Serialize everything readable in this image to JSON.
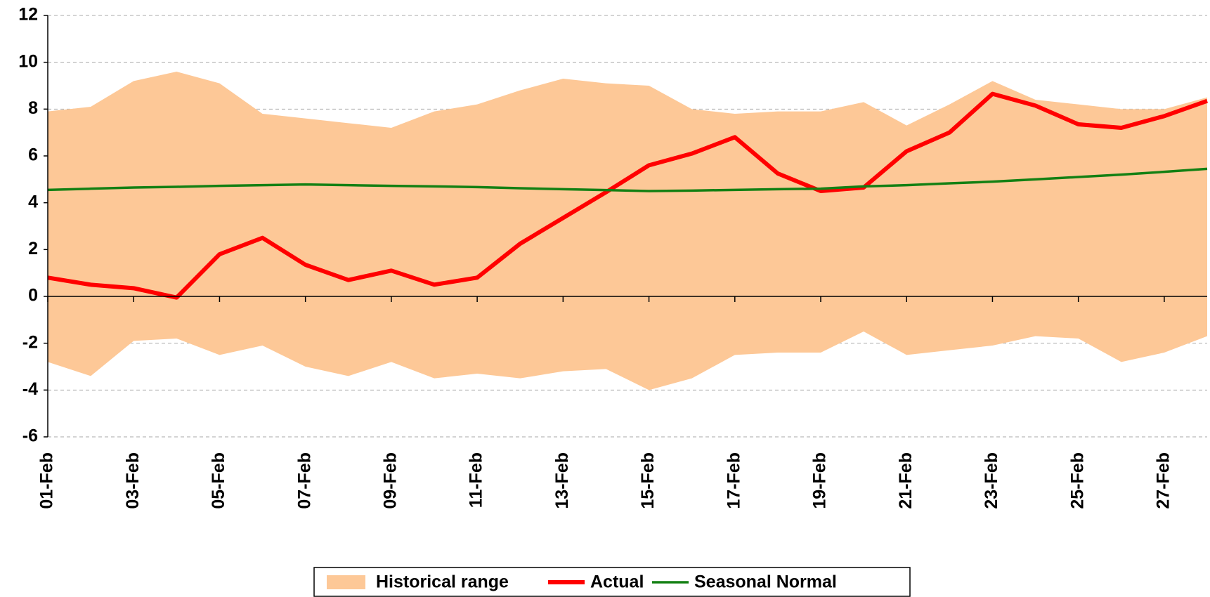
{
  "chart_data": {
    "type": "line",
    "categories": [
      "01-Feb",
      null,
      "03-Feb",
      null,
      "05-Feb",
      null,
      "07-Feb",
      null,
      "09-Feb",
      null,
      "11-Feb",
      null,
      "13-Feb",
      null,
      "15-Feb",
      null,
      "17-Feb",
      null,
      "19-Feb",
      null,
      "21-Feb",
      null,
      "23-Feb",
      null,
      "25-Feb",
      null,
      "27-Feb",
      null
    ],
    "series": [
      {
        "name": "Historical range",
        "type": "range",
        "color": "#fdc897",
        "high": [
          7.9,
          8.1,
          9.2,
          9.6,
          9.1,
          7.8,
          7.6,
          7.4,
          7.2,
          7.9,
          8.2,
          8.8,
          9.3,
          9.1,
          9.0,
          8.0,
          7.8,
          7.9,
          7.9,
          8.3,
          7.3,
          8.2,
          9.2,
          8.4,
          8.2,
          8.0,
          8.0,
          8.5
        ],
        "low": [
          -2.8,
          -3.4,
          -1.9,
          -1.8,
          -2.5,
          -2.1,
          -3.0,
          -3.4,
          -2.8,
          -3.5,
          -3.3,
          -3.5,
          -3.2,
          -3.1,
          -4.0,
          -3.5,
          -2.5,
          -2.4,
          -2.4,
          -1.5,
          -2.5,
          -2.3,
          -2.1,
          -1.7,
          -1.8,
          -2.8,
          -2.4,
          -1.7
        ]
      },
      {
        "name": "Actual",
        "color": "#ff0000",
        "values": [
          0.8,
          0.5,
          0.35,
          -0.05,
          1.8,
          2.5,
          1.35,
          0.7,
          1.1,
          0.5,
          0.8,
          2.25,
          3.35,
          4.45,
          5.6,
          6.1,
          6.8,
          5.25,
          4.5,
          4.65,
          6.2,
          7.0,
          8.65,
          8.15,
          7.35,
          7.2,
          7.7,
          8.35
        ]
      },
      {
        "name": "Seasonal Normal",
        "color": "#138013",
        "values": [
          4.55,
          4.6,
          4.65,
          4.68,
          4.72,
          4.75,
          4.78,
          4.75,
          4.72,
          4.7,
          4.67,
          4.62,
          4.58,
          4.54,
          4.5,
          4.52,
          4.55,
          4.58,
          4.6,
          4.7,
          4.75,
          4.83,
          4.9,
          5.0,
          5.1,
          5.2,
          5.32,
          5.45
        ]
      }
    ],
    "ylim": [
      -6,
      12
    ],
    "yticks": [
      -6,
      -4,
      -2,
      0,
      2,
      4,
      6,
      8,
      10,
      12
    ],
    "grid": true,
    "legend": "bottom"
  }
}
